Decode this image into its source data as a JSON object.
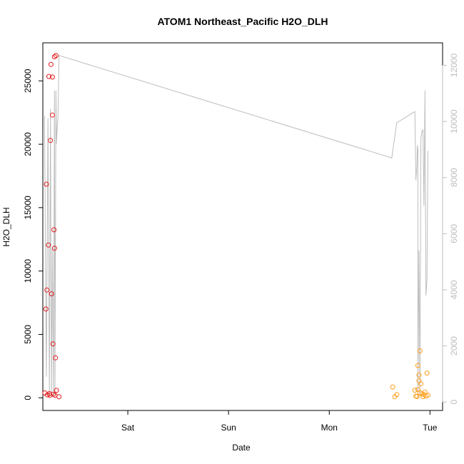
{
  "chart_data": {
    "type": "scatter",
    "title": "ATOM1 Northeast_Pacific H2O_DLH",
    "xlabel": "Date",
    "ylabel": "H2O_DLH",
    "x_axis": {
      "kind": "date",
      "range": [
        "2016-08-12T03:45",
        "2016-08-16T03:00"
      ],
      "ticks": [
        {
          "label": "Sat",
          "value": "2016-08-13T00:00"
        },
        {
          "label": "Sun",
          "value": "2016-08-14T00:00"
        },
        {
          "label": "Mon",
          "value": "2016-08-15T00:00"
        },
        {
          "label": "Tue",
          "value": "2016-08-16T00:00"
        }
      ]
    },
    "y_left": {
      "range": [
        -1000,
        28000
      ],
      "ticks": [
        0,
        5000,
        10000,
        15000,
        20000,
        25000
      ],
      "color": "#000000"
    },
    "y_right": {
      "range": [
        -300,
        12800
      ],
      "ticks": [
        0,
        2000,
        4000,
        6000,
        8000,
        10000,
        12000
      ],
      "color": "#bdbdbd"
    },
    "grid": false,
    "legend": "none",
    "series": [
      {
        "axis": "left",
        "mark": "circle",
        "color": "#e41a1c",
        "points": [
          {
            "x": "2016-08-12T04:14",
            "y": 380
          },
          {
            "x": "2016-08-12T04:29",
            "y": 7000
          },
          {
            "x": "2016-08-12T04:36",
            "y": 16850
          },
          {
            "x": "2016-08-12T04:43",
            "y": 8500
          },
          {
            "x": "2016-08-12T04:50",
            "y": 230
          },
          {
            "x": "2016-08-12T05:05",
            "y": 12050
          },
          {
            "x": "2016-08-12T05:12",
            "y": 25350
          },
          {
            "x": "2016-08-12T05:19",
            "y": 330
          },
          {
            "x": "2016-08-12T05:26",
            "y": 200
          },
          {
            "x": "2016-08-12T05:34",
            "y": 20300
          },
          {
            "x": "2016-08-12T05:41",
            "y": 26300
          },
          {
            "x": "2016-08-12T05:48",
            "y": 8200
          },
          {
            "x": "2016-08-12T06:02",
            "y": 22300
          },
          {
            "x": "2016-08-12T06:02",
            "y": 25300
          },
          {
            "x": "2016-08-12T06:10",
            "y": 4250
          },
          {
            "x": "2016-08-12T06:17",
            "y": 280
          },
          {
            "x": "2016-08-12T06:24",
            "y": 13250
          },
          {
            "x": "2016-08-12T06:31",
            "y": 26900
          },
          {
            "x": "2016-08-12T06:31",
            "y": 11800
          },
          {
            "x": "2016-08-12T06:38",
            "y": 200
          },
          {
            "x": "2016-08-12T06:46",
            "y": 3150
          },
          {
            "x": "2016-08-12T06:53",
            "y": 27000
          },
          {
            "x": "2016-08-12T07:00",
            "y": 580
          },
          {
            "x": "2016-08-12T07:36",
            "y": 80
          }
        ]
      },
      {
        "axis": "left",
        "mark": "circle",
        "color": "#ff9f1c",
        "points": [
          {
            "x": "2016-08-15T15:07",
            "y": 850
          },
          {
            "x": "2016-08-15T15:36",
            "y": 80
          },
          {
            "x": "2016-08-15T16:05",
            "y": 250
          },
          {
            "x": "2016-08-15T20:24",
            "y": 600
          },
          {
            "x": "2016-08-15T20:38",
            "y": 130
          },
          {
            "x": "2016-08-15T20:53",
            "y": 100
          },
          {
            "x": "2016-08-15T21:07",
            "y": 650
          },
          {
            "x": "2016-08-15T21:07",
            "y": 2550
          },
          {
            "x": "2016-08-15T21:22",
            "y": 1350
          },
          {
            "x": "2016-08-15T21:22",
            "y": 1800
          },
          {
            "x": "2016-08-15T21:36",
            "y": 400
          },
          {
            "x": "2016-08-15T21:36",
            "y": 3700
          },
          {
            "x": "2016-08-15T21:50",
            "y": 1100
          },
          {
            "x": "2016-08-15T22:05",
            "y": 320
          },
          {
            "x": "2016-08-15T22:19",
            "y": 100
          },
          {
            "x": "2016-08-15T22:34",
            "y": 250
          },
          {
            "x": "2016-08-15T22:48",
            "y": 450
          },
          {
            "x": "2016-08-15T23:02",
            "y": 150
          },
          {
            "x": "2016-08-15T23:17",
            "y": 1950
          },
          {
            "x": "2016-08-15T23:31",
            "y": 200
          }
        ]
      },
      {
        "axis": "right",
        "mark": "line",
        "color": "#bdbdbd",
        "points": [
          {
            "x": "2016-08-12T04:08",
            "y": 10200
          },
          {
            "x": "2016-08-12T04:36",
            "y": 900
          },
          {
            "x": "2016-08-12T04:58",
            "y": 10100
          },
          {
            "x": "2016-08-12T05:19",
            "y": 200
          },
          {
            "x": "2016-08-12T05:34",
            "y": 10450
          },
          {
            "x": "2016-08-12T05:48",
            "y": 200
          },
          {
            "x": "2016-08-12T06:02",
            "y": 5500
          },
          {
            "x": "2016-08-12T06:17",
            "y": 200
          },
          {
            "x": "2016-08-12T06:31",
            "y": 11100
          },
          {
            "x": "2016-08-12T06:38",
            "y": 200
          },
          {
            "x": "2016-08-12T06:53",
            "y": 11100
          },
          {
            "x": "2016-08-12T07:00",
            "y": 9200
          },
          {
            "x": "2016-08-12T07:00",
            "y": 9300
          },
          {
            "x": "2016-08-12T07:22",
            "y": 10200
          },
          {
            "x": "2016-08-12T07:36",
            "y": 12350
          },
          {
            "x": "2016-08-15T14:53",
            "y": 8700
          },
          {
            "x": "2016-08-15T16:05",
            "y": 9950
          },
          {
            "x": "2016-08-15T20:24",
            "y": 10350
          },
          {
            "x": "2016-08-15T20:38",
            "y": 7900
          },
          {
            "x": "2016-08-15T20:53",
            "y": 8400
          },
          {
            "x": "2016-08-15T21:00",
            "y": 9150
          },
          {
            "x": "2016-08-15T21:07",
            "y": 9000
          },
          {
            "x": "2016-08-15T21:07",
            "y": 200
          },
          {
            "x": "2016-08-15T21:22",
            "y": 5400
          },
          {
            "x": "2016-08-15T21:36",
            "y": 200
          },
          {
            "x": "2016-08-15T21:50",
            "y": 9400
          },
          {
            "x": "2016-08-15T22:05",
            "y": 9650
          },
          {
            "x": "2016-08-15T22:19",
            "y": 9700
          },
          {
            "x": "2016-08-15T22:34",
            "y": 7000
          },
          {
            "x": "2016-08-15T22:48",
            "y": 11100
          },
          {
            "x": "2016-08-15T23:02",
            "y": 3800
          },
          {
            "x": "2016-08-15T23:17",
            "y": 4300
          },
          {
            "x": "2016-08-15T23:31",
            "y": 8950
          }
        ]
      }
    ]
  }
}
